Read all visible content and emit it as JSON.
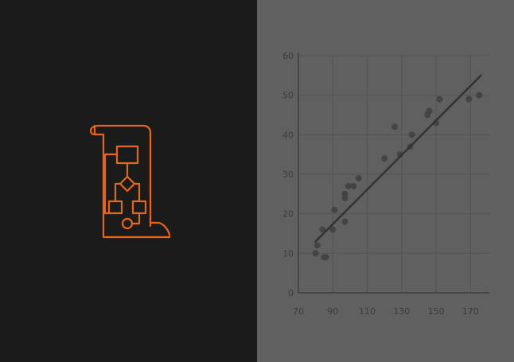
{
  "colors": {
    "left_background": "#1b1b1b",
    "right_background": "#606060",
    "icon_accent": "#e8651f",
    "chart_ink": "#333333",
    "gridline": "#545454",
    "tick_text": "#3c3c3c"
  },
  "icon": {
    "name": "flowchart-scroll-icon"
  },
  "chart_data": {
    "type": "scatter",
    "title": "",
    "xlabel": "",
    "ylabel": "",
    "xlim": [
      70,
      180
    ],
    "ylim": [
      0,
      60
    ],
    "grid": true,
    "x_ticks": [
      "70",
      "90",
      "110",
      "130",
      "150",
      "170"
    ],
    "y_ticks": [
      "0",
      "10",
      "20",
      "30",
      "40",
      "50",
      "60"
    ],
    "points": [
      {
        "x": 80,
        "y": 10
      },
      {
        "x": 81,
        "y": 12
      },
      {
        "x": 84,
        "y": 16
      },
      {
        "x": 85,
        "y": 9
      },
      {
        "x": 86,
        "y": 9
      },
      {
        "x": 90,
        "y": 16
      },
      {
        "x": 91,
        "y": 21
      },
      {
        "x": 97,
        "y": 18
      },
      {
        "x": 97,
        "y": 24
      },
      {
        "x": 97,
        "y": 25
      },
      {
        "x": 99,
        "y": 27
      },
      {
        "x": 102,
        "y": 27
      },
      {
        "x": 105,
        "y": 29
      },
      {
        "x": 120,
        "y": 34
      },
      {
        "x": 126,
        "y": 42
      },
      {
        "x": 129,
        "y": 35
      },
      {
        "x": 135,
        "y": 37
      },
      {
        "x": 136,
        "y": 40
      },
      {
        "x": 145,
        "y": 45
      },
      {
        "x": 146,
        "y": 46
      },
      {
        "x": 150,
        "y": 43
      },
      {
        "x": 152,
        "y": 49
      },
      {
        "x": 169,
        "y": 49
      },
      {
        "x": 175,
        "y": 50
      }
    ],
    "trendline": {
      "x": [
        80,
        176
      ],
      "y": [
        13,
        55
      ]
    }
  }
}
